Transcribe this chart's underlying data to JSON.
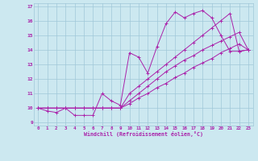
{
  "xlabel": "Windchill (Refroidissement éolien,°C)",
  "bg_color": "#cce8f0",
  "grid_color": "#a0c8d8",
  "line_color": "#aa22aa",
  "xlim": [
    -0.5,
    23.5
  ],
  "ylim": [
    8.8,
    17.2
  ],
  "xticks": [
    0,
    1,
    2,
    3,
    4,
    5,
    6,
    7,
    8,
    9,
    10,
    11,
    12,
    13,
    14,
    15,
    16,
    17,
    18,
    19,
    20,
    21,
    22,
    23
  ],
  "yticks": [
    9,
    10,
    11,
    12,
    13,
    14,
    15,
    16,
    17
  ],
  "series": [
    [
      10.0,
      9.8,
      9.7,
      10.0,
      9.5,
      9.5,
      9.5,
      11.0,
      10.5,
      10.2,
      13.8,
      13.5,
      12.4,
      14.2,
      15.8,
      16.6,
      16.2,
      16.5,
      16.7,
      16.2,
      15.0,
      13.9,
      13.9,
      14.0
    ],
    [
      10.0,
      10.0,
      10.0,
      10.0,
      10.0,
      10.0,
      10.0,
      10.0,
      10.0,
      10.0,
      10.5,
      11.0,
      11.5,
      12.0,
      12.5,
      12.9,
      13.3,
      13.6,
      14.0,
      14.3,
      14.6,
      14.9,
      15.2,
      14.0
    ],
    [
      10.0,
      10.0,
      10.0,
      10.0,
      10.0,
      10.0,
      10.0,
      10.0,
      10.0,
      10.0,
      10.3,
      10.7,
      11.0,
      11.4,
      11.7,
      12.1,
      12.4,
      12.8,
      13.1,
      13.4,
      13.8,
      14.1,
      14.4,
      14.0
    ],
    [
      10.0,
      10.0,
      10.0,
      10.0,
      10.0,
      10.0,
      10.0,
      10.0,
      10.0,
      10.0,
      11.0,
      11.5,
      12.0,
      12.5,
      13.0,
      13.5,
      14.0,
      14.5,
      15.0,
      15.5,
      16.0,
      16.5,
      13.9,
      14.0
    ]
  ]
}
